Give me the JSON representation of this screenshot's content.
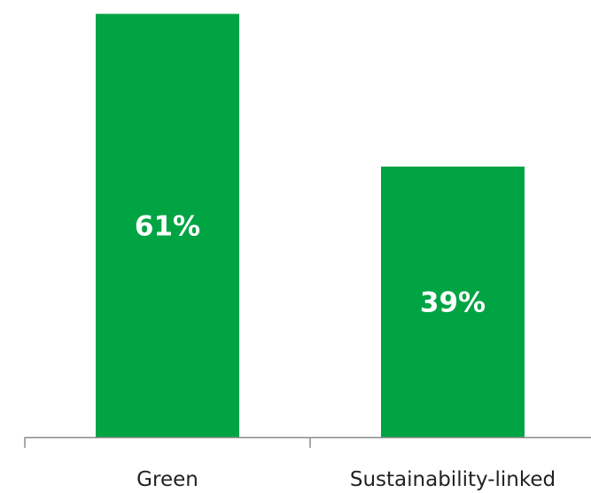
{
  "chart_data": {
    "type": "bar",
    "categories": [
      "Green",
      "Sustainability-linked"
    ],
    "values": [
      61,
      39
    ],
    "value_labels": [
      "61%",
      "39%"
    ],
    "ylim": [
      0,
      63
    ],
    "grid": false,
    "colors": {
      "bar": "#00a443",
      "axis": "#8a8a8a",
      "label_text": "#222222",
      "value_text": "#ffffff"
    }
  }
}
